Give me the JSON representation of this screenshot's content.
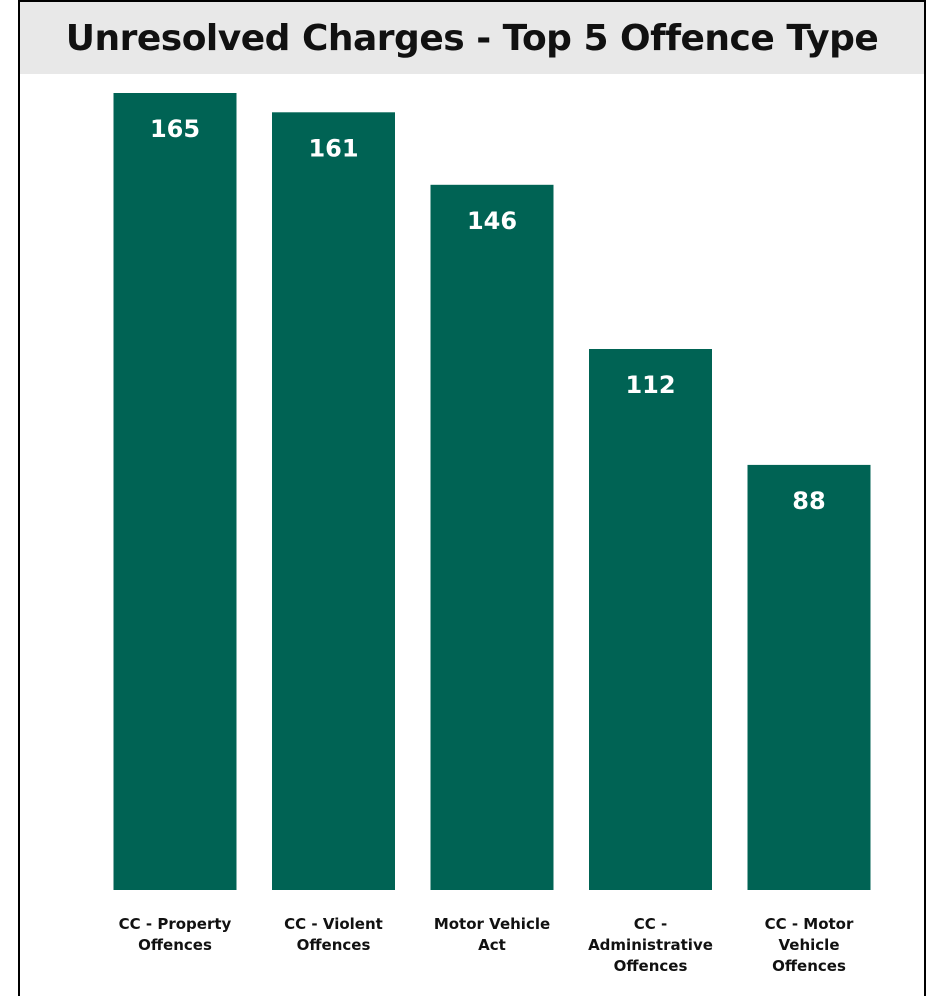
{
  "chart_data": {
    "type": "bar",
    "title": "Unresolved Charges - Top 5 Offence Type",
    "categories": [
      "CC - Property Offences",
      "CC - Violent Offences",
      "Motor Vehicle Act",
      "CC - Administrative Offences",
      "CC - Motor Vehicle Offences"
    ],
    "category_lines": [
      [
        "CC - Property",
        "Offences"
      ],
      [
        "CC - Violent",
        "Offences"
      ],
      [
        "Motor Vehicle",
        "Act"
      ],
      [
        "CC -",
        "Administrative",
        "Offences"
      ],
      [
        "CC - Motor",
        "Vehicle",
        "Offences"
      ]
    ],
    "values": [
      165,
      161,
      146,
      112,
      88
    ],
    "bar_color": "#006354",
    "data_labels": true,
    "grid": false,
    "legend": "none",
    "ylim": [
      0,
      165
    ]
  }
}
